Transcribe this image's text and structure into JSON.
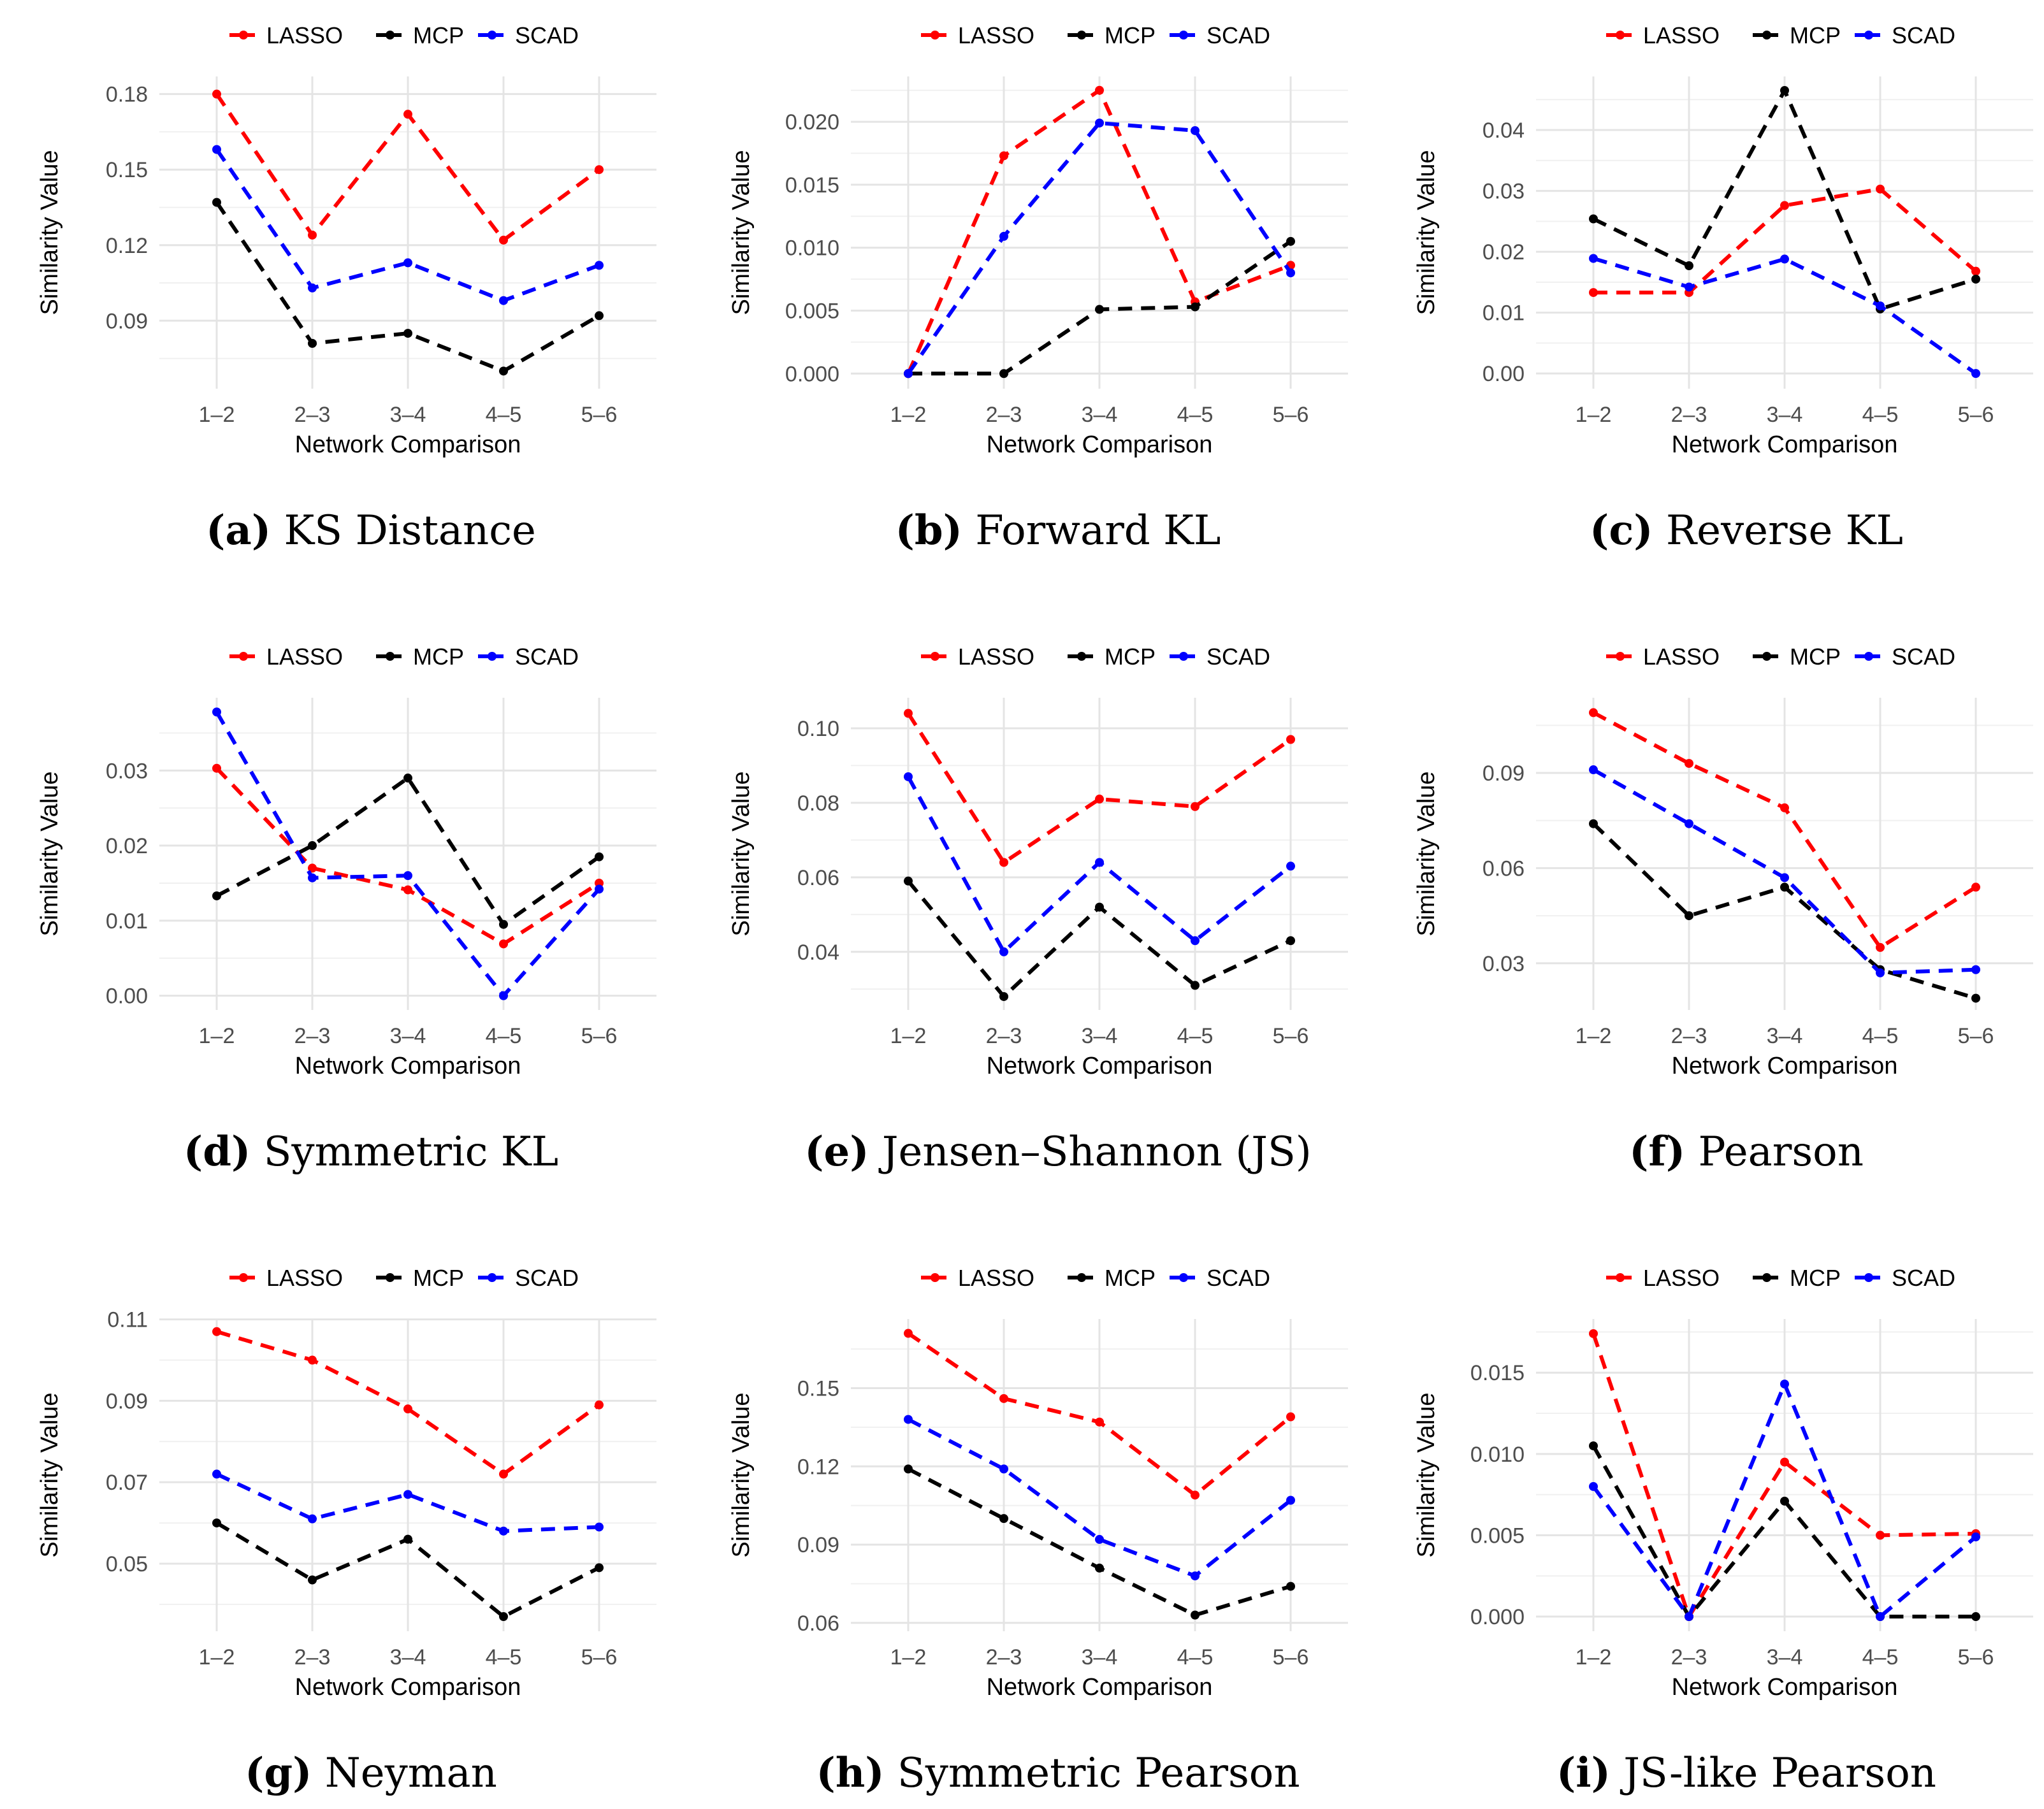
{
  "figure": {
    "series_colors": {
      "LASSO": "#ff0000",
      "MCP": "#000000",
      "SCAD": "#0000ff"
    },
    "legend_labels": [
      "LASSO",
      "MCP",
      "SCAD"
    ]
  },
  "chart_data": [
    {
      "type": "line",
      "panel_letter": "(a)",
      "caption": "KS Distance",
      "categories": [
        "1–2",
        "2–3",
        "3–4",
        "4–5",
        "5–6"
      ],
      "xlabel": "Network Comparison",
      "ylabel": "Similarity Value",
      "ylim": [
        0.063,
        0.187
      ],
      "yticks": [
        0.09,
        0.12,
        0.15,
        0.18
      ],
      "ytick_labels": [
        "0.09",
        "0.12",
        "0.15",
        "0.18"
      ],
      "grid": true,
      "legend": "top",
      "series": [
        {
          "name": "LASSO",
          "color": "#ff0000",
          "values": [
            0.18,
            0.124,
            0.172,
            0.122,
            0.15
          ]
        },
        {
          "name": "MCP",
          "color": "#000000",
          "values": [
            0.137,
            0.081,
            0.085,
            0.07,
            0.092
          ]
        },
        {
          "name": "SCAD",
          "color": "#0000ff",
          "values": [
            0.158,
            0.103,
            0.113,
            0.098,
            0.112
          ]
        }
      ]
    },
    {
      "type": "line",
      "panel_letter": "(b)",
      "caption": "Forward KL",
      "categories": [
        "1–2",
        "2–3",
        "3–4",
        "4–5",
        "5–6"
      ],
      "xlabel": "Network Comparison",
      "ylabel": "Similarity Value",
      "ylim": [
        -0.0012,
        0.0236
      ],
      "yticks": [
        0.0,
        0.005,
        0.01,
        0.015,
        0.02
      ],
      "ytick_labels": [
        "0.000",
        "0.005",
        "0.010",
        "0.015",
        "0.020"
      ],
      "grid": true,
      "legend": "top",
      "series": [
        {
          "name": "LASSO",
          "color": "#ff0000",
          "values": [
            0.0,
            0.0173,
            0.0225,
            0.0057,
            0.0086
          ]
        },
        {
          "name": "MCP",
          "color": "#000000",
          "values": [
            0.0,
            0.0,
            0.0051,
            0.0053,
            0.0105
          ]
        },
        {
          "name": "SCAD",
          "color": "#0000ff",
          "values": [
            0.0,
            0.0109,
            0.0199,
            0.0193,
            0.008
          ]
        }
      ]
    },
    {
      "type": "line",
      "panel_letter": "(c)",
      "caption": "Reverse KL",
      "categories": [
        "1–2",
        "2–3",
        "3–4",
        "4–5",
        "5–6"
      ],
      "xlabel": "Network Comparison",
      "ylabel": "Similarity Value",
      "ylim": [
        -0.0025,
        0.0488
      ],
      "yticks": [
        0.0,
        0.01,
        0.02,
        0.03,
        0.04
      ],
      "ytick_labels": [
        "0.00",
        "0.01",
        "0.02",
        "0.03",
        "0.04"
      ],
      "grid": true,
      "legend": "top",
      "series": [
        {
          "name": "LASSO",
          "color": "#ff0000",
          "values": [
            0.0133,
            0.0133,
            0.0276,
            0.0303,
            0.0168
          ]
        },
        {
          "name": "MCP",
          "color": "#000000",
          "values": [
            0.0254,
            0.0177,
            0.0465,
            0.0106,
            0.0155
          ]
        },
        {
          "name": "SCAD",
          "color": "#0000ff",
          "values": [
            0.0189,
            0.0142,
            0.0188,
            0.0111,
            0.0
          ]
        }
      ]
    },
    {
      "type": "line",
      "panel_letter": "(d)",
      "caption": "Symmetric KL",
      "categories": [
        "1–2",
        "2–3",
        "3–4",
        "4–5",
        "5–6"
      ],
      "xlabel": "Network Comparison",
      "ylabel": "Similarity Value",
      "ylim": [
        -0.0019,
        0.0397
      ],
      "yticks": [
        0.0,
        0.01,
        0.02,
        0.03
      ],
      "ytick_labels": [
        "0.00",
        "0.01",
        "0.02",
        "0.03"
      ],
      "grid": true,
      "legend": "top",
      "series": [
        {
          "name": "LASSO",
          "color": "#ff0000",
          "values": [
            0.0303,
            0.017,
            0.0141,
            0.0069,
            0.015
          ]
        },
        {
          "name": "MCP",
          "color": "#000000",
          "values": [
            0.0133,
            0.02,
            0.029,
            0.0095,
            0.0185
          ]
        },
        {
          "name": "SCAD",
          "color": "#0000ff",
          "values": [
            0.0378,
            0.0157,
            0.016,
            0.0,
            0.0142
          ]
        }
      ]
    },
    {
      "type": "line",
      "panel_letter": "(e)",
      "caption": "Jensen–Shannon (JS)",
      "categories": [
        "1–2",
        "2–3",
        "3–4",
        "4–5",
        "5–6"
      ],
      "xlabel": "Network Comparison",
      "ylabel": "Similarity Value",
      "ylim": [
        0.0244,
        0.1082
      ],
      "yticks": [
        0.04,
        0.06,
        0.08,
        0.1
      ],
      "ytick_labels": [
        "0.04",
        "0.06",
        "0.08",
        "0.10"
      ],
      "grid": true,
      "legend": "top",
      "series": [
        {
          "name": "LASSO",
          "color": "#ff0000",
          "values": [
            0.104,
            0.064,
            0.081,
            0.079,
            0.097
          ]
        },
        {
          "name": "MCP",
          "color": "#000000",
          "values": [
            0.059,
            0.028,
            0.052,
            0.031,
            0.043
          ]
        },
        {
          "name": "SCAD",
          "color": "#0000ff",
          "values": [
            0.087,
            0.04,
            0.064,
            0.043,
            0.063
          ]
        }
      ]
    },
    {
      "type": "line",
      "panel_letter": "(f)",
      "caption": "Pearson",
      "categories": [
        "1–2",
        "2–3",
        "3–4",
        "4–5",
        "5–6"
      ],
      "xlabel": "Network Comparison",
      "ylabel": "Similarity Value",
      "ylim": [
        0.0153,
        0.1137
      ],
      "yticks": [
        0.03,
        0.06,
        0.09
      ],
      "ytick_labels": [
        "0.03",
        "0.06",
        "0.09"
      ],
      "grid": true,
      "legend": "top",
      "series": [
        {
          "name": "LASSO",
          "color": "#ff0000",
          "values": [
            0.109,
            0.093,
            0.079,
            0.035,
            0.054
          ]
        },
        {
          "name": "MCP",
          "color": "#000000",
          "values": [
            0.074,
            0.045,
            0.054,
            0.028,
            0.019
          ]
        },
        {
          "name": "SCAD",
          "color": "#0000ff",
          "values": [
            0.091,
            0.074,
            0.057,
            0.027,
            0.028
          ]
        }
      ]
    },
    {
      "type": "line",
      "panel_letter": "(g)",
      "caption": "Neyman",
      "categories": [
        "1–2",
        "2–3",
        "3–4",
        "4–5",
        "5–6"
      ],
      "xlabel": "Network Comparison",
      "ylabel": "Similarity Value",
      "ylim": [
        0.0334,
        0.1101
      ],
      "yticks": [
        0.05,
        0.07,
        0.09,
        0.11
      ],
      "ytick_labels": [
        "0.05",
        "0.07",
        "0.09",
        "0.11"
      ],
      "grid": true,
      "legend": "top",
      "series": [
        {
          "name": "LASSO",
          "color": "#ff0000",
          "values": [
            0.107,
            0.1,
            0.088,
            0.072,
            0.089
          ]
        },
        {
          "name": "MCP",
          "color": "#000000",
          "values": [
            0.06,
            0.046,
            0.056,
            0.037,
            0.049
          ]
        },
        {
          "name": "SCAD",
          "color": "#0000ff",
          "values": [
            0.072,
            0.061,
            0.067,
            0.058,
            0.059
          ]
        }
      ]
    },
    {
      "type": "line",
      "panel_letter": "(h)",
      "caption": "Symmetric Pearson",
      "categories": [
        "1–2",
        "2–3",
        "3–4",
        "4–5",
        "5–6"
      ],
      "xlabel": "Network Comparison",
      "ylabel": "Similarity Value",
      "ylim": [
        0.0568,
        0.1765
      ],
      "yticks": [
        0.06,
        0.09,
        0.12,
        0.15
      ],
      "ytick_labels": [
        "0.06",
        "0.09",
        "0.12",
        "0.15"
      ],
      "grid": true,
      "legend": "top",
      "series": [
        {
          "name": "LASSO",
          "color": "#ff0000",
          "values": [
            0.171,
            0.146,
            0.137,
            0.109,
            0.139
          ]
        },
        {
          "name": "MCP",
          "color": "#000000",
          "values": [
            0.119,
            0.1,
            0.081,
            0.063,
            0.074
          ]
        },
        {
          "name": "SCAD",
          "color": "#0000ff",
          "values": [
            0.138,
            0.119,
            0.092,
            0.078,
            0.107
          ]
        }
      ]
    },
    {
      "type": "line",
      "panel_letter": "(i)",
      "caption": "JS-like Pearson",
      "categories": [
        "1–2",
        "2–3",
        "3–4",
        "4–5",
        "5–6"
      ],
      "xlabel": "Network Comparison",
      "ylabel": "Similarity Value",
      "ylim": [
        -0.0009,
        0.0183
      ],
      "yticks": [
        0.0,
        0.005,
        0.01,
        0.015
      ],
      "ytick_labels": [
        "0.000",
        "0.005",
        "0.010",
        "0.015"
      ],
      "grid": true,
      "legend": "top",
      "series": [
        {
          "name": "LASSO",
          "color": "#ff0000",
          "values": [
            0.0174,
            0.0,
            0.0095,
            0.005,
            0.0051
          ]
        },
        {
          "name": "MCP",
          "color": "#000000",
          "values": [
            0.0105,
            0.0,
            0.0071,
            0.0,
            0.0
          ]
        },
        {
          "name": "SCAD",
          "color": "#0000ff",
          "values": [
            0.008,
            0.0,
            0.0143,
            0.0,
            0.0049
          ]
        }
      ]
    }
  ]
}
